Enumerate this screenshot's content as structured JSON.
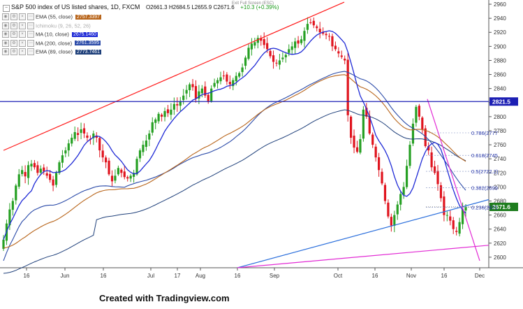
{
  "header": {
    "title": "S&P 500 index of US listed shares, 1D, FXCM",
    "ohlc": "O2661.3  H2684.5  L2655.9  C2671.6",
    "change": "+10.3 (+0.39%)",
    "hint": "Exit Full Screen (ESC)"
  },
  "legend": [
    {
      "name": "EMA (55, close)",
      "value": "2757.3397",
      "color": "#b8651b"
    },
    {
      "name": "Ichimoku (9, 26, 52, 26)",
      "value": "",
      "color": "#9a9a9a"
    },
    {
      "name": "MA (10, close)",
      "value": "2675.1460",
      "color": "#1f2ad6"
    },
    {
      "name": "MA (200, close)",
      "value": "2761.3595",
      "color": "#2a4aa8"
    },
    {
      "name": "EMA (89, close)",
      "value": "2773.7461",
      "color": "#1e3f7a"
    }
  ],
  "price_tags": {
    "resistance": "2821.5",
    "last": "2671.6"
  },
  "fib_labels": [
    {
      "label": "0.786(2777",
      "price": 2777
    },
    {
      "label": "0.618(2745",
      "price": 2745
    },
    {
      "label": "0.5(2722.2)",
      "price": 2722.2
    },
    {
      "label": "0.382(2699",
      "price": 2699
    },
    {
      "label": "0.236(2671",
      "price": 2671
    }
  ],
  "credit": "Created with Tradingview.com",
  "colors": {
    "up": "#26a023",
    "down": "#e0141e",
    "channel": "#ff1a1a",
    "support": "#2b6fdc",
    "magenta": "#e22ad4",
    "hline": "#1c1fb4"
  },
  "chart_data": {
    "type": "candlestick",
    "title": "S&P 500 index of US listed shares, 1D, FXCM",
    "x_ticks": [
      "16",
      "Jun",
      "16",
      "Jul",
      "17",
      "Aug",
      "16",
      "Sep",
      "Oct",
      "16",
      "Nov",
      "16",
      "Dec"
    ],
    "y_ticks": [
      2600,
      2620,
      2640,
      2660,
      2680,
      2700,
      2720,
      2740,
      2760,
      2780,
      2800,
      2820,
      2840,
      2860,
      2880,
      2900,
      2920,
      2940,
      2960
    ],
    "ylim": [
      2585,
      2966
    ],
    "horizontal_level": 2821.5,
    "last_price": 2671.6,
    "candles_close": [
      2625,
      2648,
      2668,
      2680,
      2702,
      2718,
      2724,
      2715,
      2731,
      2733,
      2728,
      2720,
      2726,
      2722,
      2716,
      2710,
      2702,
      2720,
      2735,
      2745,
      2752,
      2762,
      2770,
      2778,
      2774,
      2782,
      2776,
      2770,
      2768,
      2776,
      2770,
      2752,
      2742,
      2735,
      2718,
      2708,
      2716,
      2727,
      2720,
      2714,
      2712,
      2716,
      2720,
      2740,
      2752,
      2760,
      2766,
      2776,
      2792,
      2796,
      2804,
      2800,
      2808,
      2805,
      2810,
      2818,
      2816,
      2822,
      2830,
      2838,
      2846,
      2842,
      2826,
      2836,
      2840,
      2830,
      2822,
      2840,
      2848,
      2852,
      2856,
      2858,
      2850,
      2846,
      2852,
      2858,
      2862,
      2870,
      2884,
      2898,
      2904,
      2906,
      2912,
      2908,
      2902,
      2896,
      2886,
      2878,
      2876,
      2880,
      2884,
      2888,
      2896,
      2900,
      2907,
      2904,
      2910,
      2922,
      2932,
      2934,
      2930,
      2926,
      2920,
      2918,
      2916,
      2914,
      2900,
      2896,
      2890,
      2885,
      2880,
      2802,
      2770,
      2756,
      2750,
      2768,
      2810,
      2800,
      2776,
      2760,
      2742,
      2724,
      2705,
      2680,
      2658,
      2645,
      2660,
      2675,
      2690,
      2700,
      2730,
      2760,
      2790,
      2814,
      2800,
      2782,
      2758,
      2752,
      2728,
      2720,
      2704,
      2684,
      2660,
      2660,
      2652,
      2640,
      2636,
      2650,
      2668,
      2671.6
    ],
    "ema55_last": 2757.3397,
    "ma10_last": 2675.146,
    "ma200_last": 2761.3595,
    "ema89_last": 2773.7461
  }
}
